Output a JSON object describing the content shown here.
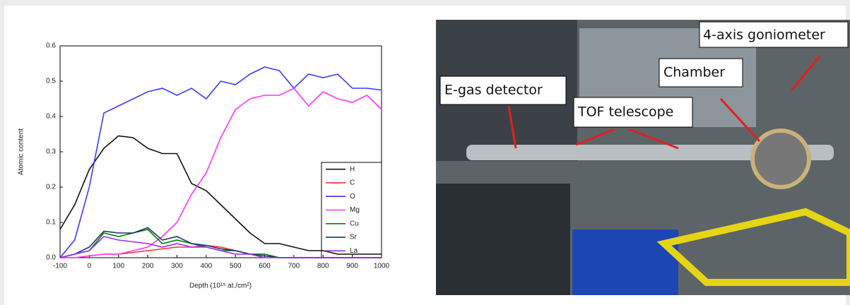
{
  "chart_data": {
    "type": "line",
    "xlabel": "Depth (10¹⁵ at./cm²)",
    "ylabel": "Atomic content",
    "x": [
      -100,
      -50,
      0,
      50,
      100,
      150,
      200,
      250,
      300,
      350,
      400,
      450,
      500,
      550,
      600,
      650,
      700,
      750,
      800,
      850,
      900,
      950,
      1000
    ],
    "series": [
      {
        "name": "H",
        "color": "#111111",
        "values": [
          0.08,
          0.15,
          0.25,
          0.31,
          0.345,
          0.34,
          0.31,
          0.295,
          0.295,
          0.21,
          0.19,
          0.15,
          0.11,
          0.07,
          0.04,
          0.04,
          0.03,
          0.02,
          0.02,
          0.01,
          0.01,
          0.01,
          0.01
        ]
      },
      {
        "name": "C",
        "color": "#ff3030",
        "values": [
          0,
          0,
          0.005,
          0.01,
          0.01,
          0.015,
          0.02,
          0.025,
          0.03,
          0.03,
          0.035,
          0.03,
          0.02,
          0.01,
          0.01,
          0,
          0,
          0,
          0,
          0,
          0,
          0,
          0
        ]
      },
      {
        "name": "O",
        "color": "#3a3aff",
        "values": [
          0,
          0.05,
          0.2,
          0.41,
          0.43,
          0.45,
          0.47,
          0.48,
          0.46,
          0.48,
          0.45,
          0.5,
          0.49,
          0.52,
          0.54,
          0.53,
          0.48,
          0.52,
          0.51,
          0.52,
          0.48,
          0.48,
          0.475
        ]
      },
      {
        "name": "Mg",
        "color": "#ff33ff",
        "values": [
          0,
          0,
          0.005,
          0.01,
          0.01,
          0.02,
          0.03,
          0.06,
          0.1,
          0.18,
          0.24,
          0.34,
          0.42,
          0.45,
          0.46,
          0.46,
          0.48,
          0.43,
          0.47,
          0.45,
          0.44,
          0.46,
          0.42
        ]
      },
      {
        "name": "Cu",
        "color": "#008000",
        "values": [
          0,
          0.01,
          0.02,
          0.07,
          0.06,
          0.07,
          0.08,
          0.04,
          0.05,
          0.04,
          0.03,
          0.02,
          0.02,
          0.01,
          0.01,
          0,
          0,
          0,
          0,
          0,
          0,
          0,
          0
        ]
      },
      {
        "name": "Sr",
        "color": "#20306a",
        "values": [
          0,
          0.01,
          0.03,
          0.075,
          0.07,
          0.07,
          0.085,
          0.05,
          0.06,
          0.04,
          0.035,
          0.025,
          0.02,
          0.01,
          0.005,
          0,
          0,
          0,
          0,
          0,
          0,
          0,
          0
        ]
      },
      {
        "name": "La",
        "color": "#9a2bff",
        "values": [
          0,
          0.01,
          0.02,
          0.06,
          0.05,
          0.045,
          0.04,
          0.03,
          0.04,
          0.03,
          0.03,
          0.02,
          0.01,
          0.01,
          0,
          0,
          0,
          0,
          0,
          0,
          0,
          0,
          0
        ]
      }
    ],
    "xlim": [
      -100,
      1000
    ],
    "xticks": [
      -100,
      0,
      100,
      200,
      300,
      400,
      500,
      600,
      700,
      800,
      900,
      1000
    ],
    "ylim": [
      0,
      0.6
    ],
    "yticks": [
      {
        "value": 0,
        "label": "0.0"
      },
      0.1,
      0.2,
      0.3,
      0.4,
      0.5,
      0.6
    ],
    "legend": "lower right"
  },
  "photo": {
    "labels": [
      "4-axis goniometer",
      "Chamber",
      "E-gas detector",
      "TOF telescope"
    ]
  }
}
